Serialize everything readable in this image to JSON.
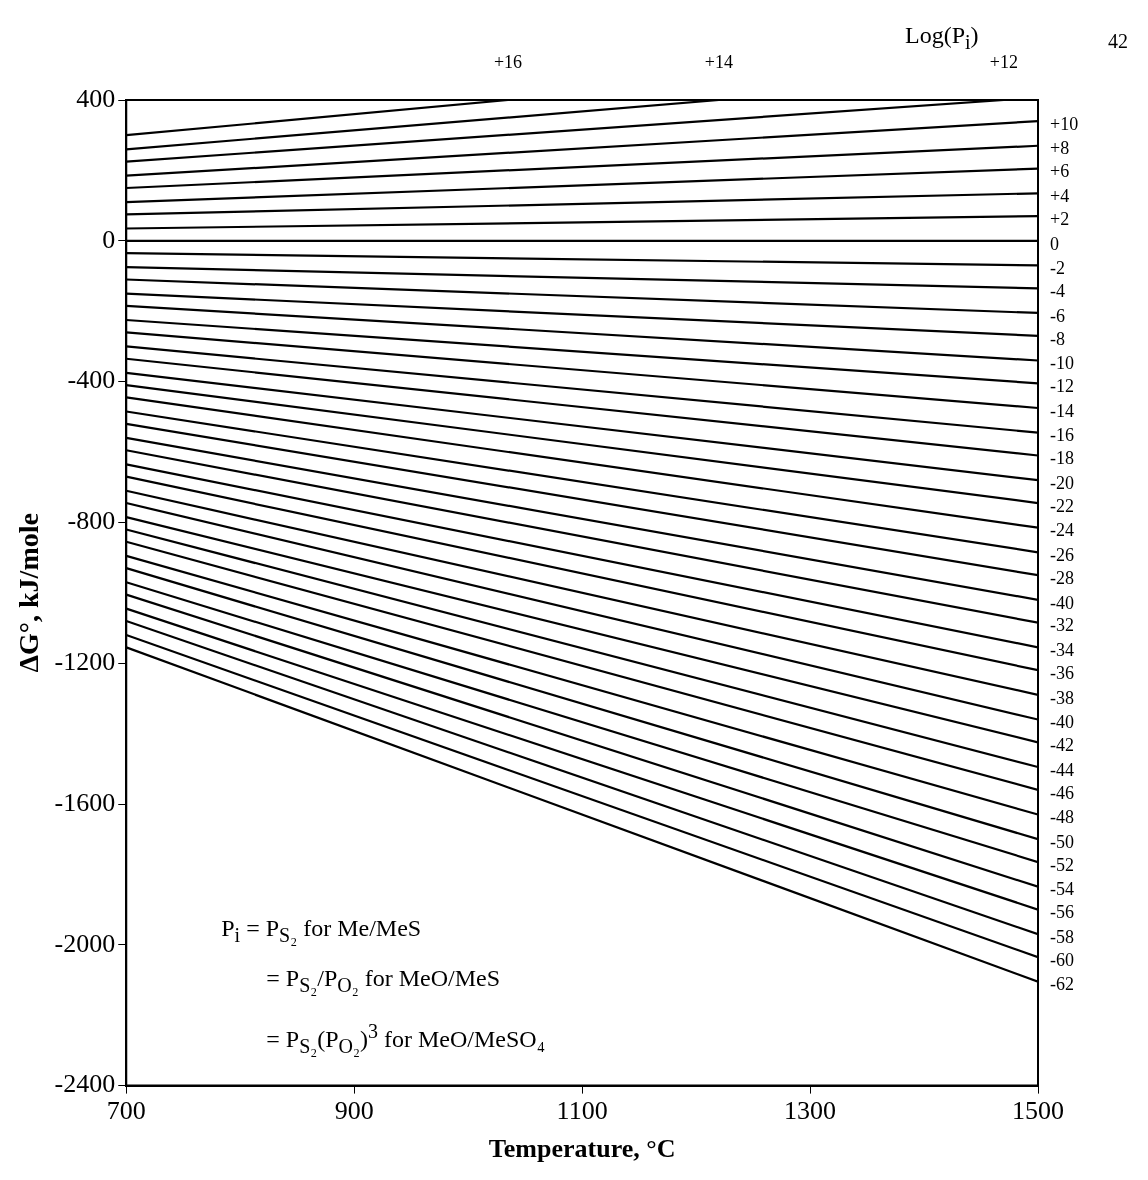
{
  "chart_data": {
    "type": "line",
    "xlabel": "Temperature, °C",
    "ylabel": "ΔG°, kJ/mole",
    "xlim": [
      700,
      1500
    ],
    "xticks": [
      700,
      900,
      1100,
      1300,
      1500
    ],
    "ylim": [
      -2400,
      400
    ],
    "yticks": [
      -2400,
      -2000,
      -1600,
      -1200,
      -800,
      -400,
      0,
      400
    ],
    "grid": false,
    "legend": false,
    "marker": "none",
    "line_style": "solid",
    "annotations": [
      "Log(P$_{i}$)",
      "42",
      "P$_{i}$  =  P$_{S₂}$ for Me/MeS",
      "=  P$_{S₂}$/P$_{O₂}$ for MeO/MeS",
      "=  P$_{S₂}$(P$_{O₂}$)$^{3}$ for MeO/MeSO₄"
    ],
    "series": [
      {
        "name": "+16",
        "color": "#000000",
        "x": [
          700,
          1035
        ],
        "values": [
          300,
          400
        ]
      },
      {
        "name": "+14",
        "color": "#000000",
        "x": [
          700,
          1220
        ],
        "values": [
          260,
          400
        ]
      },
      {
        "name": "+12",
        "color": "#000000",
        "x": [
          700,
          1470
        ],
        "values": [
          225,
          400
        ]
      },
      {
        "name": "+10",
        "color": "#000000",
        "x": [
          700,
          1500
        ],
        "values": [
          185,
          340
        ]
      },
      {
        "name": "+8",
        "color": "#000000",
        "x": [
          700,
          1500
        ],
        "values": [
          150,
          270
        ]
      },
      {
        "name": "+6",
        "color": "#000000",
        "x": [
          700,
          1500
        ],
        "values": [
          110,
          205
        ]
      },
      {
        "name": "+4",
        "color": "#000000",
        "x": [
          700,
          1500
        ],
        "values": [
          75,
          135
        ]
      },
      {
        "name": "+2",
        "color": "#000000",
        "x": [
          700,
          1500
        ],
        "values": [
          35,
          70
        ]
      },
      {
        "name": "0",
        "color": "#000000",
        "x": [
          700,
          1500
        ],
        "values": [
          0,
          0
        ]
      },
      {
        "name": "-2",
        "color": "#000000",
        "x": [
          700,
          1500
        ],
        "values": [
          -35,
          -70
        ]
      },
      {
        "name": "-4",
        "color": "#000000",
        "x": [
          700,
          1500
        ],
        "values": [
          -75,
          -135
        ]
      },
      {
        "name": "-6",
        "color": "#000000",
        "x": [
          700,
          1500
        ],
        "values": [
          -110,
          -205
        ]
      },
      {
        "name": "-8",
        "color": "#000000",
        "x": [
          700,
          1500
        ],
        "values": [
          -150,
          -270
        ]
      },
      {
        "name": "-10",
        "color": "#000000",
        "x": [
          700,
          1500
        ],
        "values": [
          -185,
          -340
        ]
      },
      {
        "name": "-12",
        "color": "#000000",
        "x": [
          700,
          1500
        ],
        "values": [
          -225,
          -405
        ]
      },
      {
        "name": "-14",
        "color": "#000000",
        "x": [
          700,
          1500
        ],
        "values": [
          -260,
          -475
        ]
      },
      {
        "name": "-16",
        "color": "#000000",
        "x": [
          700,
          1500
        ],
        "values": [
          -300,
          -545
        ]
      },
      {
        "name": "-18",
        "color": "#000000",
        "x": [
          700,
          1500
        ],
        "values": [
          -335,
          -610
        ]
      },
      {
        "name": "-20",
        "color": "#000000",
        "x": [
          700,
          1500
        ],
        "values": [
          -375,
          -680
        ]
      },
      {
        "name": "-22",
        "color": "#000000",
        "x": [
          700,
          1500
        ],
        "values": [
          -410,
          -745
        ]
      },
      {
        "name": "-24",
        "color": "#000000",
        "x": [
          700,
          1500
        ],
        "values": [
          -445,
          -815
        ]
      },
      {
        "name": "-26",
        "color": "#000000",
        "x": [
          700,
          1500
        ],
        "values": [
          -485,
          -885
        ]
      },
      {
        "name": "-28",
        "color": "#000000",
        "x": [
          700,
          1500
        ],
        "values": [
          -520,
          -950
        ]
      },
      {
        "name": "-40",
        "color": "#000000",
        "x": [
          700,
          1500
        ],
        "values": [
          -560,
          -1020
        ]
      },
      {
        "name": "-32",
        "color": "#000000",
        "x": [
          700,
          1500
        ],
        "values": [
          -595,
          -1085
        ]
      },
      {
        "name": "-34",
        "color": "#000000",
        "x": [
          700,
          1500
        ],
        "values": [
          -635,
          -1155
        ]
      },
      {
        "name": "-36",
        "color": "#000000",
        "x": [
          700,
          1500
        ],
        "values": [
          -670,
          -1220
        ]
      },
      {
        "name": "-38",
        "color": "#000000",
        "x": [
          700,
          1500
        ],
        "values": [
          -710,
          -1290
        ]
      },
      {
        "name": "-40",
        "color": "#000000",
        "x": [
          700,
          1500
        ],
        "values": [
          -745,
          -1360
        ]
      },
      {
        "name": "-42",
        "color": "#000000",
        "x": [
          700,
          1500
        ],
        "values": [
          -785,
          -1425
        ]
      },
      {
        "name": "-44",
        "color": "#000000",
        "x": [
          700,
          1500
        ],
        "values": [
          -820,
          -1495
        ]
      },
      {
        "name": "-46",
        "color": "#000000",
        "x": [
          700,
          1500
        ],
        "values": [
          -855,
          -1560
        ]
      },
      {
        "name": "-48",
        "color": "#000000",
        "x": [
          700,
          1500
        ],
        "values": [
          -895,
          -1630
        ]
      },
      {
        "name": "-50",
        "color": "#000000",
        "x": [
          700,
          1500
        ],
        "values": [
          -930,
          -1700
        ]
      },
      {
        "name": "-52",
        "color": "#000000",
        "x": [
          700,
          1500
        ],
        "values": [
          -970,
          -1765
        ]
      },
      {
        "name": "-54",
        "color": "#000000",
        "x": [
          700,
          1500
        ],
        "values": [
          -1005,
          -1835
        ]
      },
      {
        "name": "-56",
        "color": "#000000",
        "x": [
          700,
          1500
        ],
        "values": [
          -1045,
          -1900
        ]
      },
      {
        "name": "-58",
        "color": "#000000",
        "x": [
          700,
          1500
        ],
        "values": [
          -1080,
          -1970
        ]
      },
      {
        "name": "-60",
        "color": "#000000",
        "x": [
          700,
          1500
        ],
        "values": [
          -1120,
          -2035
        ]
      },
      {
        "name": "-62",
        "color": "#000000",
        "x": [
          700,
          1500
        ],
        "values": [
          -1155,
          -2105
        ]
      }
    ]
  }
}
